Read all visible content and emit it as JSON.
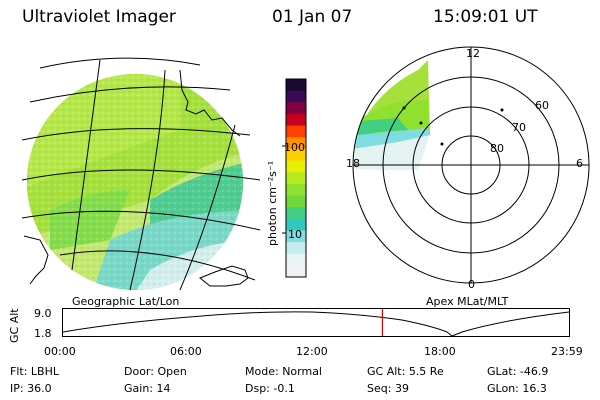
{
  "header": {
    "title": "Ultraviolet Imager",
    "date": "01 Jan 07",
    "time": "15:09:01 UT"
  },
  "left_panel": {
    "label": "Geographic Lat/Lon"
  },
  "right_panel": {
    "label": "Apex MLat/MLT",
    "mlt_labels": {
      "top": "12",
      "left": "18",
      "right": "6",
      "bottom": "0"
    },
    "lat_labels": [
      "60",
      "70",
      "80"
    ]
  },
  "colorbar": {
    "unit_label": "photon cm⁻²s⁻¹",
    "ticks": [
      "100",
      "10"
    ],
    "colors": [
      "#1a0a33",
      "#3a0a55",
      "#800040",
      "#c80020",
      "#ff4000",
      "#ff9000",
      "#ffd000",
      "#e6f000",
      "#b8ea20",
      "#90e030",
      "#70d838",
      "#40d080",
      "#30c8c0",
      "#80dce0",
      "#c4ecec",
      "#e8f4f4",
      "#f2f2f2"
    ]
  },
  "altitude_plot": {
    "ylabel": "GC Alt",
    "y_ticks": [
      "9.0",
      "1.8"
    ],
    "x_ticks": [
      "00:00",
      "06:00",
      "12:00",
      "18:00",
      "23:59"
    ],
    "current_time_marker_hours": 15.15
  },
  "info": {
    "filter_label": "Flt:",
    "filter_value": "LBHL",
    "ip_label": "IP:",
    "ip_value": "36.0",
    "door_label": "Door:",
    "door_value": "Open",
    "gain_label": "Gain:",
    "gain_value": "14",
    "mode_label": "Mode:",
    "mode_value": "Normal",
    "dsp_label": "Dsp:",
    "dsp_value": "-0.1",
    "gcalt_label": "GC Alt:",
    "gcalt_value": "5.5 Re",
    "seq_label": "Seq:",
    "seq_value": "39",
    "glat_label": "GLat:",
    "glat_value": "-46.9",
    "glon_label": "GLon:",
    "glon_value": "16.3"
  }
}
